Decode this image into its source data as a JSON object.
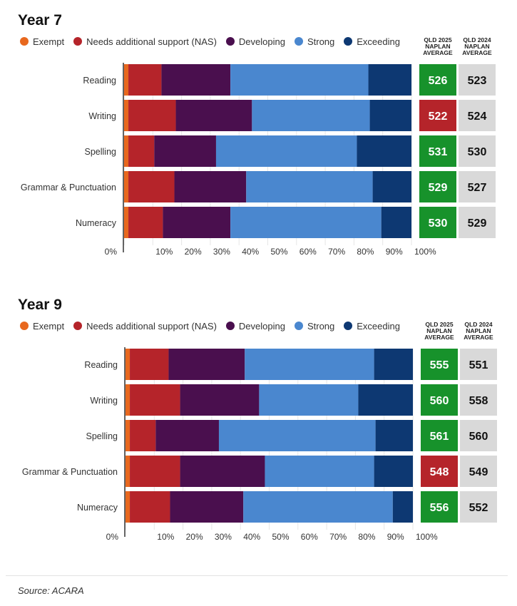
{
  "colors": {
    "Exempt": "#e8681e",
    "Needs additional support (NAS)": "#b5242a",
    "Developing": "#4a0f4e",
    "Strong": "#4a87cf",
    "Exceeding": "#0d3872",
    "above": "#17922b",
    "below": "#b5242a",
    "prev": "#d9d9d9"
  },
  "col_headers": {
    "y2025": "QLD 2025\nNAPLAN\nAVERAGE",
    "y2024": "QLD 2024\nNAPLAN\nAVERAGE"
  },
  "source": "Source: ACARA",
  "chart_data": [
    {
      "type": "bar",
      "stacked": true,
      "orientation": "horizontal",
      "title": "Year 7",
      "categories": [
        "Reading",
        "Writing",
        "Spelling",
        "Grammar & Punctuation",
        "Numeracy"
      ],
      "xlim": [
        0,
        100
      ],
      "xticks": [
        "0%",
        "10%",
        "20%",
        "30%",
        "40%",
        "50%",
        "60%",
        "70%",
        "80%",
        "90%",
        "100%"
      ],
      "series": [
        {
          "name": "Exempt",
          "values": [
            1.5,
            1.5,
            1.5,
            1.5,
            1.5
          ]
        },
        {
          "name": "Needs additional support (NAS)",
          "values": [
            11.5,
            16.5,
            9,
            16,
            12
          ]
        },
        {
          "name": "Developing",
          "values": [
            24,
            26.5,
            21.5,
            25,
            23.5
          ]
        },
        {
          "name": "Strong",
          "values": [
            48,
            41,
            49,
            44,
            52.5
          ]
        },
        {
          "name": "Exceeding",
          "values": [
            15,
            14.5,
            19,
            13.5,
            10.5
          ]
        }
      ],
      "averages": {
        "y2025": [
          526,
          522,
          531,
          529,
          530
        ],
        "y2024": [
          523,
          524,
          530,
          527,
          529
        ]
      }
    },
    {
      "type": "bar",
      "stacked": true,
      "orientation": "horizontal",
      "title": "Year 9",
      "categories": [
        "Reading",
        "Writing",
        "Spelling",
        "Grammar & Punctuation",
        "Numeracy"
      ],
      "xlim": [
        0,
        100
      ],
      "xticks": [
        "0%",
        "10%",
        "20%",
        "30%",
        "40%",
        "50%",
        "60%",
        "70%",
        "80%",
        "90%",
        "100%"
      ],
      "series": [
        {
          "name": "Exempt",
          "values": [
            1.5,
            1.5,
            1.5,
            1.5,
            1.5
          ]
        },
        {
          "name": "Needs additional support (NAS)",
          "values": [
            13.5,
            17.5,
            9,
            17.5,
            14
          ]
        },
        {
          "name": "Developing",
          "values": [
            26.5,
            27.5,
            22,
            29.5,
            25.5
          ]
        },
        {
          "name": "Strong",
          "values": [
            45,
            34.5,
            54.5,
            38,
            52
          ]
        },
        {
          "name": "Exceeding",
          "values": [
            13.5,
            19,
            13,
            13.5,
            7
          ]
        }
      ],
      "averages": {
        "y2025": [
          555,
          560,
          561,
          548,
          556
        ],
        "y2024": [
          551,
          558,
          560,
          549,
          552
        ]
      }
    }
  ]
}
